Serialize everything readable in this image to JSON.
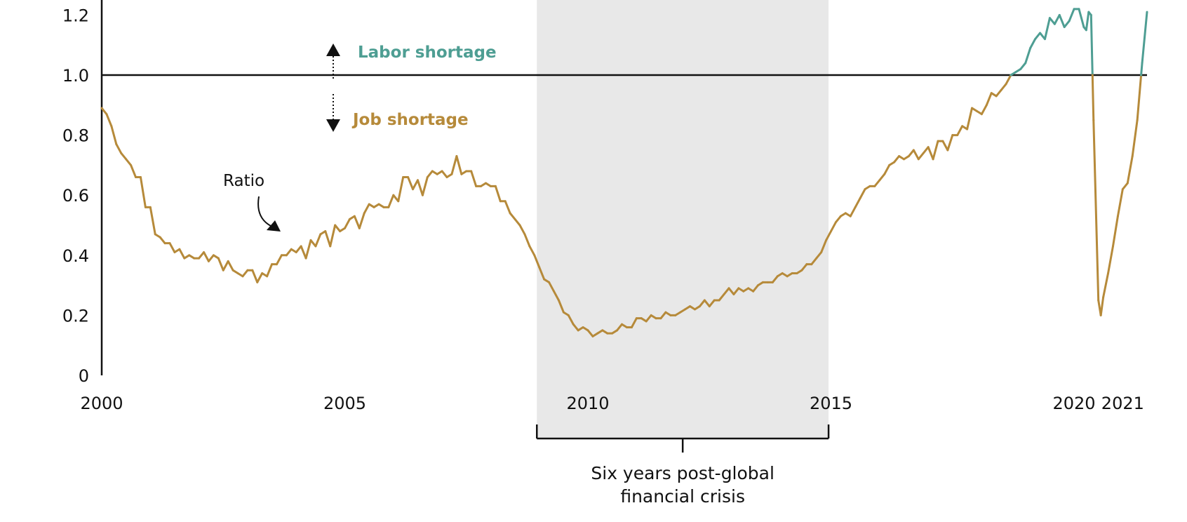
{
  "chart_data": {
    "type": "line",
    "xlabel": "",
    "ylabel": "",
    "xlim": [
      2000,
      2021.5
    ],
    "ylim": [
      0,
      1.25
    ],
    "x_ticks": [
      "2000",
      "2005",
      "2010",
      "2015",
      "2020",
      "2021"
    ],
    "y_ticks": [
      "0",
      "0.2",
      "0.4",
      "0.6",
      "0.8",
      "1.0",
      "1.2"
    ],
    "threshold": 1.0,
    "shaded_period": {
      "start": 2008.95,
      "end": 2014.95,
      "label_line1": "Six years post-global",
      "label_line2": "financial crisis"
    },
    "annotations": {
      "above": "Labor shortage",
      "below": "Job shortage",
      "series_label": "Ratio"
    },
    "colors": {
      "above": "#4e9e93",
      "below": "#b68a3a",
      "shade": "#e8e8e8",
      "axis": "#111111"
    },
    "series": [
      {
        "points": [
          [
            2000.0,
            0.89
          ],
          [
            2000.1,
            0.87
          ],
          [
            2000.2,
            0.83
          ],
          [
            2000.3,
            0.77
          ],
          [
            2000.4,
            0.74
          ],
          [
            2000.5,
            0.72
          ],
          [
            2000.6,
            0.7
          ],
          [
            2000.7,
            0.66
          ],
          [
            2000.8,
            0.66
          ],
          [
            2000.9,
            0.56
          ],
          [
            2001.0,
            0.56
          ],
          [
            2001.1,
            0.47
          ],
          [
            2001.2,
            0.46
          ],
          [
            2001.3,
            0.44
          ],
          [
            2001.4,
            0.44
          ],
          [
            2001.5,
            0.41
          ],
          [
            2001.6,
            0.42
          ],
          [
            2001.7,
            0.39
          ],
          [
            2001.8,
            0.4
          ],
          [
            2001.9,
            0.39
          ],
          [
            2002.0,
            0.39
          ],
          [
            2002.1,
            0.41
          ],
          [
            2002.2,
            0.38
          ],
          [
            2002.3,
            0.4
          ],
          [
            2002.4,
            0.39
          ],
          [
            2002.5,
            0.35
          ],
          [
            2002.6,
            0.38
          ],
          [
            2002.7,
            0.35
          ],
          [
            2002.8,
            0.34
          ],
          [
            2002.9,
            0.33
          ],
          [
            2003.0,
            0.35
          ],
          [
            2003.1,
            0.35
          ],
          [
            2003.2,
            0.31
          ],
          [
            2003.3,
            0.34
          ],
          [
            2003.4,
            0.33
          ],
          [
            2003.5,
            0.37
          ],
          [
            2003.6,
            0.37
          ],
          [
            2003.7,
            0.4
          ],
          [
            2003.8,
            0.4
          ],
          [
            2003.9,
            0.42
          ],
          [
            2004.0,
            0.41
          ],
          [
            2004.1,
            0.43
          ],
          [
            2004.2,
            0.39
          ],
          [
            2004.3,
            0.45
          ],
          [
            2004.4,
            0.43
          ],
          [
            2004.5,
            0.47
          ],
          [
            2004.6,
            0.48
          ],
          [
            2004.7,
            0.43
          ],
          [
            2004.8,
            0.5
          ],
          [
            2004.9,
            0.48
          ],
          [
            2005.0,
            0.49
          ],
          [
            2005.1,
            0.52
          ],
          [
            2005.2,
            0.53
          ],
          [
            2005.3,
            0.49
          ],
          [
            2005.4,
            0.54
          ],
          [
            2005.5,
            0.57
          ],
          [
            2005.6,
            0.56
          ],
          [
            2005.7,
            0.57
          ],
          [
            2005.8,
            0.56
          ],
          [
            2005.9,
            0.56
          ],
          [
            2006.0,
            0.6
          ],
          [
            2006.1,
            0.58
          ],
          [
            2006.2,
            0.66
          ],
          [
            2006.3,
            0.66
          ],
          [
            2006.4,
            0.62
          ],
          [
            2006.5,
            0.65
          ],
          [
            2006.6,
            0.6
          ],
          [
            2006.7,
            0.66
          ],
          [
            2006.8,
            0.68
          ],
          [
            2006.9,
            0.67
          ],
          [
            2007.0,
            0.68
          ],
          [
            2007.1,
            0.66
          ],
          [
            2007.2,
            0.67
          ],
          [
            2007.3,
            0.73
          ],
          [
            2007.4,
            0.67
          ],
          [
            2007.5,
            0.68
          ],
          [
            2007.6,
            0.68
          ],
          [
            2007.7,
            0.63
          ],
          [
            2007.8,
            0.63
          ],
          [
            2007.9,
            0.64
          ],
          [
            2008.0,
            0.63
          ],
          [
            2008.1,
            0.63
          ],
          [
            2008.2,
            0.58
          ],
          [
            2008.3,
            0.58
          ],
          [
            2008.4,
            0.54
          ],
          [
            2008.5,
            0.52
          ],
          [
            2008.6,
            0.5
          ],
          [
            2008.7,
            0.47
          ],
          [
            2008.8,
            0.43
          ],
          [
            2008.9,
            0.4
          ],
          [
            2009.0,
            0.36
          ],
          [
            2009.1,
            0.32
          ],
          [
            2009.2,
            0.31
          ],
          [
            2009.3,
            0.28
          ],
          [
            2009.4,
            0.25
          ],
          [
            2009.5,
            0.21
          ],
          [
            2009.6,
            0.2
          ],
          [
            2009.7,
            0.17
          ],
          [
            2009.8,
            0.15
          ],
          [
            2009.9,
            0.16
          ],
          [
            2010.0,
            0.15
          ],
          [
            2010.1,
            0.13
          ],
          [
            2010.2,
            0.14
          ],
          [
            2010.3,
            0.15
          ],
          [
            2010.4,
            0.14
          ],
          [
            2010.5,
            0.14
          ],
          [
            2010.6,
            0.15
          ],
          [
            2010.7,
            0.17
          ],
          [
            2010.8,
            0.16
          ],
          [
            2010.9,
            0.16
          ],
          [
            2011.0,
            0.19
          ],
          [
            2011.1,
            0.19
          ],
          [
            2011.2,
            0.18
          ],
          [
            2011.3,
            0.2
          ],
          [
            2011.4,
            0.19
          ],
          [
            2011.5,
            0.19
          ],
          [
            2011.6,
            0.21
          ],
          [
            2011.7,
            0.2
          ],
          [
            2011.8,
            0.2
          ],
          [
            2011.9,
            0.21
          ],
          [
            2012.0,
            0.22
          ],
          [
            2012.1,
            0.23
          ],
          [
            2012.2,
            0.22
          ],
          [
            2012.3,
            0.23
          ],
          [
            2012.4,
            0.25
          ],
          [
            2012.5,
            0.23
          ],
          [
            2012.6,
            0.25
          ],
          [
            2012.7,
            0.25
          ],
          [
            2012.8,
            0.27
          ],
          [
            2012.9,
            0.29
          ],
          [
            2013.0,
            0.27
          ],
          [
            2013.1,
            0.29
          ],
          [
            2013.2,
            0.28
          ],
          [
            2013.3,
            0.29
          ],
          [
            2013.4,
            0.28
          ],
          [
            2013.5,
            0.3
          ],
          [
            2013.6,
            0.31
          ],
          [
            2013.7,
            0.31
          ],
          [
            2013.8,
            0.31
          ],
          [
            2013.9,
            0.33
          ],
          [
            2014.0,
            0.34
          ],
          [
            2014.1,
            0.33
          ],
          [
            2014.2,
            0.34
          ],
          [
            2014.3,
            0.34
          ],
          [
            2014.4,
            0.35
          ],
          [
            2014.5,
            0.37
          ],
          [
            2014.6,
            0.37
          ],
          [
            2014.7,
            0.39
          ],
          [
            2014.8,
            0.41
          ],
          [
            2014.9,
            0.45
          ],
          [
            2015.0,
            0.48
          ],
          [
            2015.1,
            0.51
          ],
          [
            2015.2,
            0.53
          ],
          [
            2015.3,
            0.54
          ],
          [
            2015.4,
            0.53
          ],
          [
            2015.5,
            0.56
          ],
          [
            2015.6,
            0.59
          ],
          [
            2015.7,
            0.62
          ],
          [
            2015.8,
            0.63
          ],
          [
            2015.9,
            0.63
          ],
          [
            2016.0,
            0.65
          ],
          [
            2016.1,
            0.67
          ],
          [
            2016.2,
            0.7
          ],
          [
            2016.3,
            0.71
          ],
          [
            2016.4,
            0.73
          ],
          [
            2016.5,
            0.72
          ],
          [
            2016.6,
            0.73
          ],
          [
            2016.7,
            0.75
          ],
          [
            2016.8,
            0.72
          ],
          [
            2016.9,
            0.74
          ],
          [
            2017.0,
            0.76
          ],
          [
            2017.1,
            0.72
          ],
          [
            2017.2,
            0.78
          ],
          [
            2017.3,
            0.78
          ],
          [
            2017.4,
            0.75
          ],
          [
            2017.5,
            0.8
          ],
          [
            2017.6,
            0.8
          ],
          [
            2017.7,
            0.83
          ],
          [
            2017.8,
            0.82
          ],
          [
            2017.9,
            0.89
          ],
          [
            2018.0,
            0.88
          ],
          [
            2018.1,
            0.87
          ],
          [
            2018.2,
            0.9
          ],
          [
            2018.3,
            0.94
          ],
          [
            2018.4,
            0.93
          ],
          [
            2018.5,
            0.95
          ],
          [
            2018.6,
            0.97
          ],
          [
            2018.7,
            1.0
          ],
          [
            2018.8,
            1.01
          ],
          [
            2018.9,
            1.02
          ],
          [
            2019.0,
            1.04
          ],
          [
            2019.1,
            1.09
          ],
          [
            2019.2,
            1.12
          ],
          [
            2019.3,
            1.14
          ],
          [
            2019.4,
            1.12
          ],
          [
            2019.5,
            1.19
          ],
          [
            2019.6,
            1.17
          ],
          [
            2019.7,
            1.2
          ],
          [
            2019.8,
            1.16
          ],
          [
            2019.9,
            1.18
          ],
          [
            2020.0,
            1.22
          ],
          [
            2020.1,
            1.22
          ],
          [
            2020.2,
            1.16
          ],
          [
            2020.25,
            1.15
          ],
          [
            2020.3,
            1.21
          ],
          [
            2020.35,
            1.2
          ],
          [
            2020.4,
            0.85
          ],
          [
            2020.5,
            0.25
          ],
          [
            2020.55,
            0.2
          ],
          [
            2020.6,
            0.26
          ],
          [
            2020.7,
            0.34
          ],
          [
            2020.8,
            0.43
          ],
          [
            2020.9,
            0.53
          ],
          [
            2021.0,
            0.62
          ],
          [
            2021.1,
            0.64
          ],
          [
            2021.2,
            0.73
          ],
          [
            2021.3,
            0.85
          ],
          [
            2021.4,
            1.04
          ],
          [
            2021.5,
            1.21
          ]
        ]
      }
    ]
  }
}
